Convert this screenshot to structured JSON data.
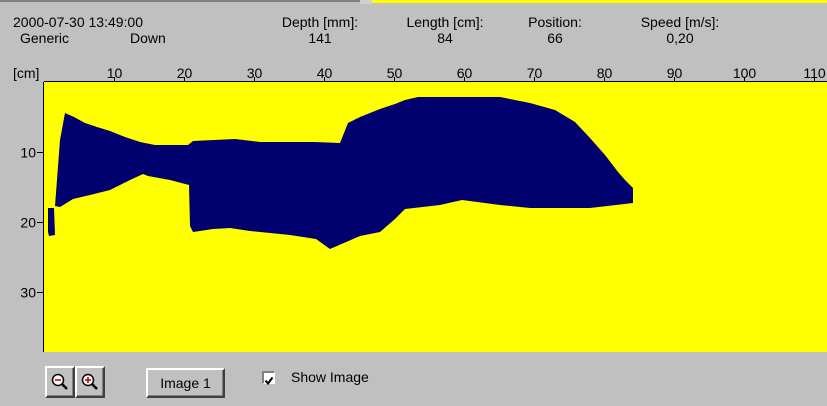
{
  "header": {
    "timestamp": "2000-07-30 13:49:00",
    "profile": "Generic",
    "direction": "Down",
    "unit_label": "[cm]",
    "fields": [
      {
        "label": "Depth [mm]:",
        "value": "141"
      },
      {
        "label": "Length [cm]:",
        "value": "84"
      },
      {
        "label": "Position:",
        "value": "66"
      },
      {
        "label": "Speed [m/s]:",
        "value": "0,20"
      }
    ]
  },
  "x_ticks": [
    "10",
    "20",
    "30",
    "40",
    "50",
    "60",
    "70",
    "80",
    "90",
    "100",
    "110"
  ],
  "y_ticks": [
    "10",
    "20",
    "30"
  ],
  "colors": {
    "background": "#c0c0c0",
    "plot_background": "#ffff00",
    "shape": "#00006e"
  },
  "toolbar": {
    "zoom_out_icon": "zoom-out-icon",
    "zoom_in_icon": "zoom-in-icon",
    "image_button_label": "Image 1",
    "show_image_label": "Show Image",
    "show_image_checked": true
  }
}
